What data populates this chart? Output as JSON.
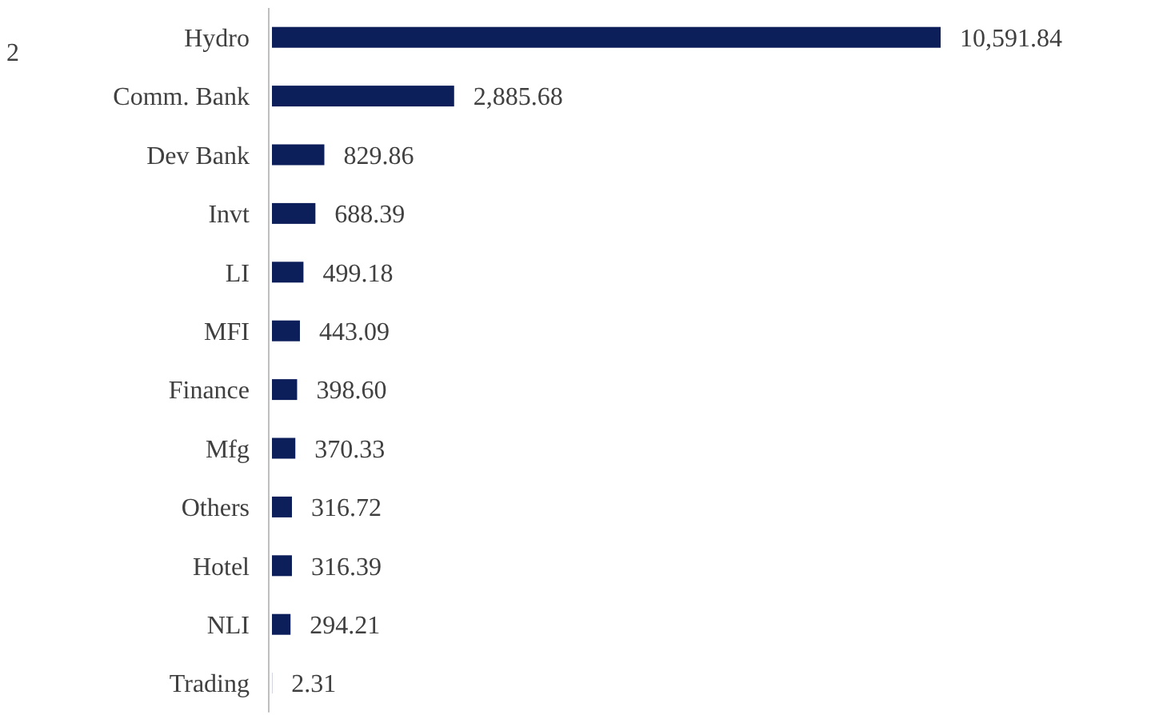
{
  "chart_data": {
    "type": "bar",
    "orientation": "horizontal",
    "categories": [
      "Hydro",
      "Comm. Bank",
      "Dev Bank",
      "Invt",
      "LI",
      "MFI",
      "Finance",
      "Mfg",
      "Others",
      "Hotel",
      "NLI",
      "Trading"
    ],
    "values": [
      10591.84,
      2885.68,
      829.86,
      688.39,
      499.18,
      443.09,
      398.6,
      370.33,
      316.72,
      316.39,
      294.21,
      2.31
    ],
    "value_labels": [
      "10,591.84",
      "2,885.68",
      "829.86",
      "688.39",
      "499.18",
      "443.09",
      "398.60",
      "370.33",
      "316.72",
      "316.39",
      "294.21",
      "2.31"
    ],
    "color": "#0d1f5a",
    "annotations": [
      "2"
    ]
  }
}
